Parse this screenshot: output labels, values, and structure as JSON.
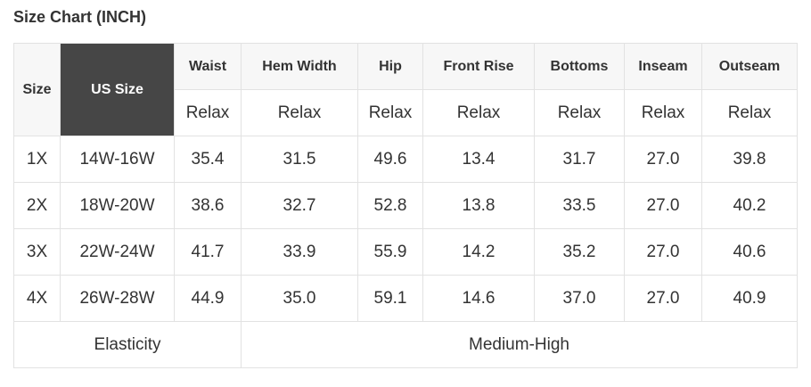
{
  "title": "Size Chart (INCH)",
  "header": {
    "size": "Size",
    "us_size": "US Size",
    "columns": [
      "Waist",
      "Hem Width",
      "Hip",
      "Front Rise",
      "Bottoms",
      "Inseam",
      "Outseam"
    ],
    "fit": [
      "Relax",
      "Relax",
      "Relax",
      "Relax",
      "Relax",
      "Relax",
      "Relax"
    ]
  },
  "rows": [
    {
      "size": "1X",
      "us": "14W-16W",
      "values": [
        "35.4",
        "31.5",
        "49.6",
        "13.4",
        "31.7",
        "27.0",
        "39.8"
      ]
    },
    {
      "size": "2X",
      "us": "18W-20W",
      "values": [
        "38.6",
        "32.7",
        "52.8",
        "13.8",
        "33.5",
        "27.0",
        "40.2"
      ]
    },
    {
      "size": "3X",
      "us": "22W-24W",
      "values": [
        "41.7",
        "33.9",
        "55.9",
        "14.2",
        "35.2",
        "27.0",
        "40.6"
      ]
    },
    {
      "size": "4X",
      "us": "26W-28W",
      "values": [
        "44.9",
        "35.0",
        "59.1",
        "14.6",
        "37.0",
        "27.0",
        "40.9"
      ]
    }
  ],
  "elasticity": {
    "label": "Elasticity",
    "value": "Medium-High"
  }
}
